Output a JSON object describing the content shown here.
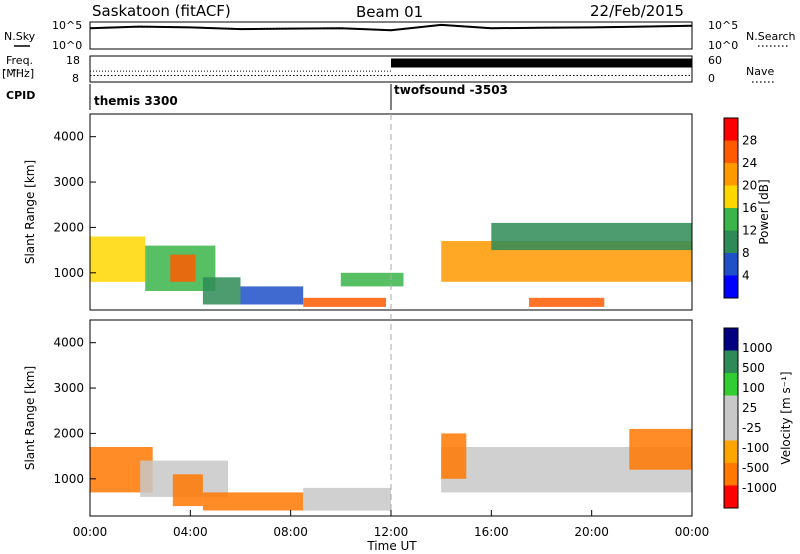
{
  "header": {
    "title": "Saskatoon (fitACF)",
    "beam": "Beam 01",
    "date": "22/Feb/2015"
  },
  "left_labels": {
    "nsky": "N.Sky",
    "freq_line1": "Freq.",
    "freq_line2": "[MHz]",
    "cpid": "CPID"
  },
  "right_labels": {
    "nsearch": "N.Search",
    "nave": "Nave"
  },
  "cpid_labels": [
    "themis 3300",
    "twofsound -3503"
  ],
  "colors": {
    "power": [
      "#0000ff",
      "#2050c8",
      "#2e8b57",
      "#39b54a",
      "#ffd700",
      "#ff9900",
      "#ff5a00",
      "#ff0000"
    ],
    "velocity": [
      "#ff0000",
      "#ff7800",
      "#ffa500",
      "#c8c8c8",
      "#c8c8c8",
      "#32cd32",
      "#2e8b57",
      "#000080"
    ]
  },
  "chart_data": [
    {
      "type": "line",
      "panel": "noise",
      "left_ticks": [
        "10^5",
        "10^0"
      ],
      "right_ticks": [
        "10^5",
        "10^0"
      ],
      "x": [
        0,
        2,
        4,
        6,
        8,
        10,
        12,
        14,
        16,
        18,
        20,
        22,
        24
      ],
      "n_sky_log": [
        5.0,
        5.4,
        5.2,
        4.8,
        4.9,
        5.0,
        4.5,
        5.8,
        5.0,
        5.1,
        5.2,
        5.4,
        5.6
      ],
      "n_search_log": [
        5.1,
        5.5,
        5.3,
        4.9,
        5.0,
        5.1,
        4.6,
        5.9,
        5.1,
        5.2,
        5.3,
        5.5,
        5.7
      ]
    },
    {
      "type": "line",
      "panel": "frequency",
      "left_ticks": [
        "18",
        "8"
      ],
      "right_ticks": [
        "60",
        "0"
      ],
      "x": [
        0,
        12,
        24
      ],
      "freq_mhz": [
        10.5,
        10.5,
        10.5
      ],
      "nave_before": 25,
      "nave_after": 45
    },
    {
      "type": "heatmap",
      "panel": "power",
      "ylabel": "Slant Range [km]",
      "colorbar_label": "Power [dB]",
      "colorbar_ticks": [
        "28",
        "24",
        "20",
        "16",
        "12",
        "8",
        "4"
      ],
      "ylim": [
        180,
        4500
      ],
      "y_ticks": [
        "4000",
        "3000",
        "2000",
        "1000"
      ],
      "features": [
        {
          "t0": 0.0,
          "t1": 2.2,
          "r0": 800,
          "r1": 1800,
          "db": 16
        },
        {
          "t0": 2.2,
          "t1": 5.0,
          "r0": 600,
          "r1": 1600,
          "db": 12
        },
        {
          "t0": 3.2,
          "t1": 4.2,
          "r0": 800,
          "r1": 1400,
          "db": 26
        },
        {
          "t0": 4.5,
          "t1": 6.0,
          "r0": 300,
          "r1": 900,
          "db": 10
        },
        {
          "t0": 6.0,
          "t1": 8.5,
          "r0": 300,
          "r1": 700,
          "db": 6
        },
        {
          "t0": 8.5,
          "t1": 11.8,
          "r0": 250,
          "r1": 450,
          "db": 24
        },
        {
          "t0": 10.0,
          "t1": 12.5,
          "r0": 700,
          "r1": 1000,
          "db": 14
        },
        {
          "t0": 14.0,
          "t1": 24.0,
          "r0": 800,
          "r1": 1700,
          "db": 22
        },
        {
          "t0": 16.0,
          "t1": 24.0,
          "r0": 1500,
          "r1": 2100,
          "db": 10
        },
        {
          "t0": 17.5,
          "t1": 20.5,
          "r0": 250,
          "r1": 450,
          "db": 26
        }
      ]
    },
    {
      "type": "heatmap",
      "panel": "velocity",
      "ylabel": "Slant Range [km]",
      "colorbar_label": "Velocity [m s⁻¹]",
      "colorbar_ticks": [
        "1000",
        "500",
        "100",
        "25",
        "-25",
        "-100",
        "-500",
        "-1000"
      ],
      "ylim": [
        180,
        4500
      ],
      "y_ticks": [
        "4000",
        "3000",
        "2000",
        "1000"
      ],
      "xlabel": "Time UT",
      "x_ticks": [
        "00:00",
        "04:00",
        "08:00",
        "12:00",
        "16:00",
        "20:00",
        "00:00"
      ],
      "features": [
        {
          "t0": 0.0,
          "t1": 2.5,
          "r0": 700,
          "r1": 1700,
          "v": -200
        },
        {
          "t0": 2.0,
          "t1": 5.5,
          "r0": 600,
          "r1": 1400,
          "v": 0
        },
        {
          "t0": 3.3,
          "t1": 4.5,
          "r0": 400,
          "r1": 1100,
          "v": -300
        },
        {
          "t0": 4.5,
          "t1": 8.5,
          "r0": 300,
          "r1": 700,
          "v": -150
        },
        {
          "t0": 8.5,
          "t1": 12.0,
          "r0": 300,
          "r1": 800,
          "v": 10
        },
        {
          "t0": 14.0,
          "t1": 24.0,
          "r0": 700,
          "r1": 1700,
          "v": 0
        },
        {
          "t0": 14.0,
          "t1": 15.0,
          "r0": 1000,
          "r1": 2000,
          "v": -200
        },
        {
          "t0": 21.5,
          "t1": 24.0,
          "r0": 1200,
          "r1": 2100,
          "v": -150
        }
      ]
    }
  ]
}
